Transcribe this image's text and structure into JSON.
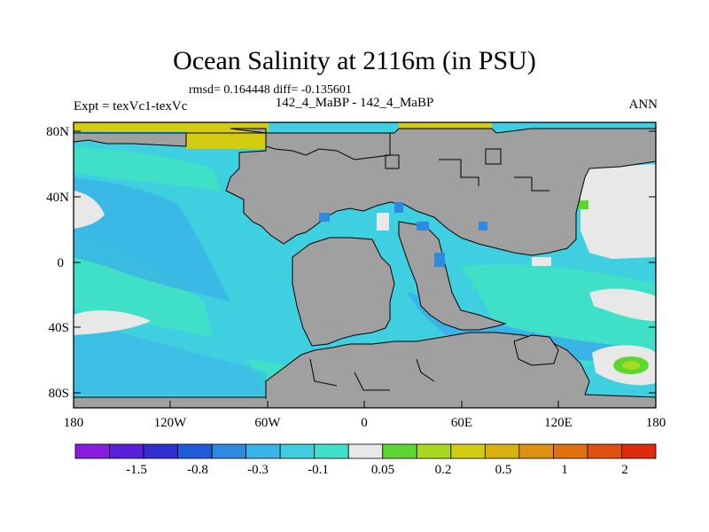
{
  "map": {
    "title": "Ocean Salinity at 2116m (in PSU)",
    "stats": "rmsd= 0.164448 diff= -0.135601",
    "left_label": "Expt = texVc1-texVc",
    "center_label": "142_4_MaBP - 142_4_MaBP",
    "right_label": "ANN",
    "lat_ticks": [
      "80N",
      "40N",
      "0",
      "40S",
      "80S"
    ],
    "lon_ticks": [
      "180",
      "120W",
      "60W",
      "0",
      "60E",
      "120E",
      "180"
    ]
  },
  "colorbar": {
    "labels": [
      "-1.5",
      "-0.8",
      "-0.3",
      "-0.1",
      "0.05",
      "0.2",
      "0.5",
      "1",
      "2"
    ],
    "colors": [
      "#8a1ce0",
      "#5a20d8",
      "#3030d0",
      "#1f5ad8",
      "#2d8ae0",
      "#3ab4e6",
      "#40cfe0",
      "#40e0c8",
      "#e8e8e8",
      "#5cd632",
      "#a8d820",
      "#d4cc10",
      "#d8b010",
      "#e09010",
      "#e07010",
      "#e05010",
      "#e02a10"
    ]
  },
  "colors": {
    "land": "#a0a0a0",
    "ocean_main": "#3ecfe0",
    "ocean_light": "#40e0c8",
    "ocean_mid": "#3ab4e6",
    "near_zero": "#e8e8e8",
    "positive_green": "#5cd632",
    "arctic_yellow": "#d4cc10"
  }
}
